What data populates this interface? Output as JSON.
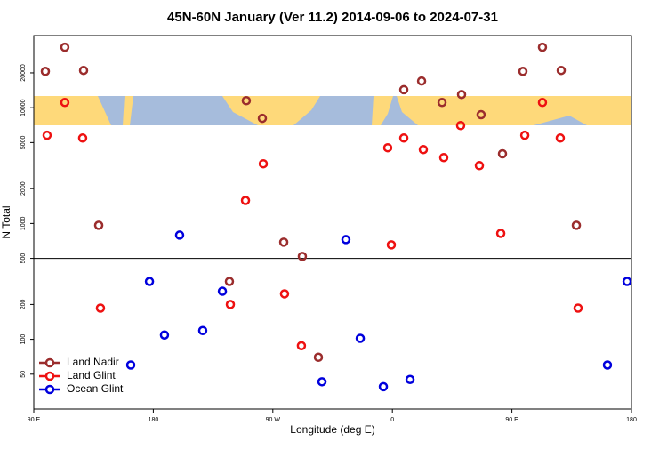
{
  "chart_data": {
    "type": "scatter",
    "title": "45N-60N January (Ver 11.2)   2014-09-06 to 2024-07-31",
    "x_label": "Longitude (deg E)",
    "y_label": "N Total",
    "xlim": [
      90,
      540
    ],
    "xticks": [
      {
        "value": 90,
        "label": "90 E"
      },
      {
        "value": 180,
        "label": "180"
      },
      {
        "value": 270,
        "label": "90 W"
      },
      {
        "value": 360,
        "label": "0"
      },
      {
        "value": 450,
        "label": "90 E"
      },
      {
        "value": 540,
        "label": "180"
      }
    ],
    "ylim": [
      25,
      42000
    ],
    "log_y": true,
    "yticks": [
      50,
      100,
      200,
      500,
      1000,
      2000,
      5000,
      10000,
      20000
    ],
    "hline": 500,
    "legend": "lower left",
    "series": [
      {
        "name": "Land Nadir",
        "color": "#9b2d2d",
        "x": [
          98.7,
          113.4,
          127.5,
          138.9,
          250,
          262.1,
          278.2,
          292.2,
          237.3,
          304.3,
          368.6,
          382,
          397.4,
          412.1,
          426.8,
          442.9,
          458.3,
          473,
          487.1,
          498.5
        ],
        "values": [
          20600,
          33300,
          21000,
          965,
          11500,
          8100,
          690,
          520,
          316,
          70,
          14300,
          17000,
          11100,
          13000,
          8700,
          4000,
          20600,
          33300,
          21000,
          965
        ]
      },
      {
        "name": "Land Glint",
        "color": "#ee1111",
        "x": [
          100,
          113.4,
          126.8,
          140.2,
          249.4,
          262.8,
          238,
          278.8,
          291.5,
          359.2,
          356.5,
          368.6,
          383.3,
          398.7,
          411.4,
          425.5,
          441.6,
          459.7,
          473,
          486.4,
          499.8
        ],
        "values": [
          5780,
          11100,
          5470,
          186,
          1580,
          3280,
          200,
          247,
          88,
          654,
          4510,
          5470,
          4350,
          3710,
          7010,
          3160,
          822,
          5780,
          11100,
          5470,
          186
        ]
      },
      {
        "name": "Ocean Glint",
        "color": "#0000dd",
        "x": [
          163,
          177.1,
          188.4,
          199.8,
          217.2,
          232,
          307,
          325,
          335.8,
          353.2,
          373.3,
          521.9,
          536.7
        ],
        "values": [
          60,
          316,
          109,
          794,
          119,
          260,
          43,
          727,
          102,
          39,
          45,
          60,
          316
        ]
      }
    ]
  }
}
